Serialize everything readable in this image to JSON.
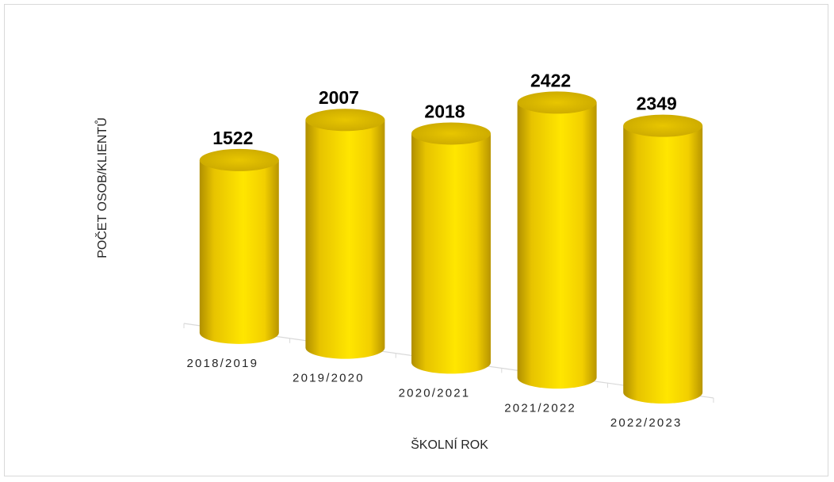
{
  "chart_data": {
    "type": "bar",
    "style": "3d-cylinder",
    "categories": [
      "2018/2019",
      "2019/2020",
      "2020/2021",
      "2021/2022",
      "2022/2023"
    ],
    "values": [
      1522,
      2007,
      2018,
      2422,
      2349
    ],
    "xlabel": "ŠKOLNÍ ROK",
    "ylabel": "POČET OSOB/KLIENTŮ",
    "data_labels": true,
    "grid": false,
    "legend": "none",
    "colors": {
      "bar_light": "#FFE600",
      "bar_mid": "#E8C400",
      "bar_dark": "#A88A00",
      "top_face": "#D9B400",
      "axis": "#d9d9d9"
    }
  }
}
